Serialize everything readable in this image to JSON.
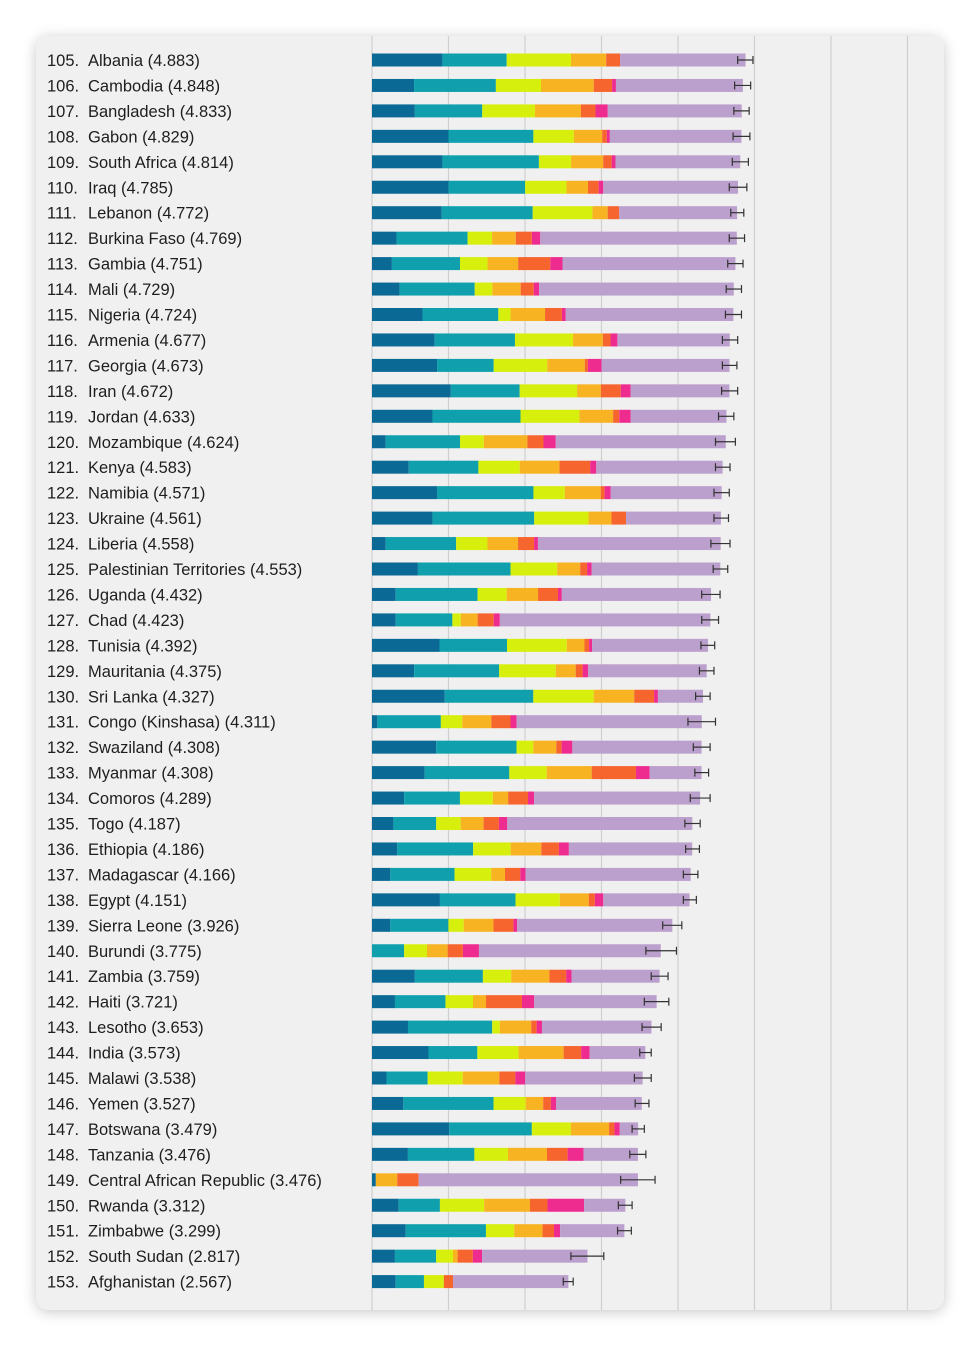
{
  "chart_data": {
    "type": "bar",
    "stacked": true,
    "orientation": "horizontal",
    "title": "",
    "xlabel": "",
    "ylabel": "",
    "xlim": [
      0,
      7.8
    ],
    "grid": true,
    "legend": "none",
    "error_bars": true,
    "segment_colors": [
      "#0b6a95",
      "#10a0ad",
      "#d6ef0c",
      "#f8b322",
      "#f7652f",
      "#ee2b8f",
      "#bb9fcd"
    ],
    "rows": [
      {
        "rank": "105.",
        "country": "Albania (4.883)",
        "score": 4.883,
        "segments": [
          0.92,
          0.84,
          0.84,
          0.46,
          0.18,
          0.0,
          1.64
        ],
        "ci": [
          4.78,
          4.98
        ]
      },
      {
        "rank": "106.",
        "country": "Cambodia (4.848)",
        "segments": [
          0.55,
          1.07,
          0.59,
          0.69,
          0.24,
          0.05,
          1.66
        ],
        "score": 4.848,
        "ci": [
          4.74,
          4.95
        ]
      },
      {
        "rank": "107.",
        "country": "Bangladesh (4.833)",
        "score": 4.833,
        "segments": [
          0.56,
          0.88,
          0.69,
          0.6,
          0.19,
          0.16,
          1.75
        ],
        "ci": [
          4.73,
          4.93
        ]
      },
      {
        "rank": "108.",
        "country": "Gabon (4.829)",
        "score": 4.829,
        "segments": [
          1.0,
          1.11,
          0.53,
          0.37,
          0.06,
          0.04,
          1.72
        ],
        "ci": [
          4.72,
          4.94
        ]
      },
      {
        "rank": "109.",
        "country": "South Africa (4.814)",
        "score": 4.814,
        "segments": [
          0.92,
          1.26,
          0.42,
          0.42,
          0.11,
          0.05,
          1.63
        ],
        "ci": [
          4.71,
          4.92
        ]
      },
      {
        "rank": "110.",
        "country": "Iraq (4.785)",
        "score": 4.785,
        "segments": [
          1.0,
          1.0,
          0.54,
          0.28,
          0.14,
          0.06,
          1.76
        ],
        "ci": [
          4.67,
          4.9
        ]
      },
      {
        "rank": "111.",
        "country": "Lebanon (4.772)",
        "score": 4.772,
        "segments": [
          0.91,
          1.19,
          0.78,
          0.2,
          0.15,
          0.0,
          1.54
        ],
        "ci": [
          4.69,
          4.86
        ]
      },
      {
        "rank": "112.",
        "country": "Burkina Faso (4.769)",
        "score": 4.769,
        "segments": [
          0.32,
          0.93,
          0.32,
          0.31,
          0.21,
          0.11,
          2.57
        ],
        "ci": [
          4.67,
          4.87
        ]
      },
      {
        "rank": "113.",
        "country": "Gambia (4.751)",
        "score": 4.751,
        "segments": [
          0.26,
          0.89,
          0.36,
          0.4,
          0.42,
          0.16,
          2.26
        ],
        "ci": [
          4.65,
          4.85
        ]
      },
      {
        "rank": "114.",
        "country": "Mali (4.729)",
        "score": 4.729,
        "segments": [
          0.36,
          0.98,
          0.23,
          0.37,
          0.17,
          0.07,
          2.54
        ],
        "ci": [
          4.63,
          4.83
        ]
      },
      {
        "rank": "115.",
        "country": "Nigeria (4.724)",
        "score": 4.724,
        "segments": [
          0.66,
          0.99,
          0.16,
          0.45,
          0.22,
          0.05,
          2.19
        ],
        "ci": [
          4.62,
          4.83
        ]
      },
      {
        "rank": "116.",
        "country": "Armenia (4.677)",
        "score": 4.677,
        "segments": [
          0.82,
          1.05,
          0.76,
          0.39,
          0.1,
          0.09,
          1.47
        ],
        "ci": [
          4.58,
          4.78
        ]
      },
      {
        "rank": "117.",
        "country": "Georgia (4.673)",
        "score": 4.673,
        "segments": [
          0.85,
          0.74,
          0.7,
          0.49,
          0.04,
          0.18,
          1.67
        ],
        "ci": [
          4.58,
          4.77
        ]
      },
      {
        "rank": "118.",
        "country": "Iran (4.672)",
        "score": 4.672,
        "segments": [
          1.03,
          0.9,
          0.75,
          0.31,
          0.26,
          0.13,
          1.29
        ],
        "ci": [
          4.57,
          4.78
        ]
      },
      {
        "rank": "119.",
        "country": "Jordan (4.633)",
        "score": 4.633,
        "segments": [
          0.79,
          1.15,
          0.77,
          0.44,
          0.08,
          0.15,
          1.25
        ],
        "ci": [
          4.53,
          4.73
        ]
      },
      {
        "rank": "120.",
        "country": "Mozambique (4.624)",
        "score": 4.624,
        "segments": [
          0.18,
          0.97,
          0.31,
          0.57,
          0.21,
          0.16,
          2.22
        ],
        "ci": [
          4.49,
          4.75
        ]
      },
      {
        "rank": "121.",
        "country": "Kenya (4.583)",
        "score": 4.583,
        "segments": [
          0.48,
          0.91,
          0.54,
          0.52,
          0.4,
          0.08,
          1.65
        ],
        "ci": [
          4.49,
          4.68
        ]
      },
      {
        "rank": "122.",
        "country": "Namibia (4.571)",
        "score": 4.571,
        "segments": [
          0.85,
          1.26,
          0.41,
          0.47,
          0.05,
          0.08,
          1.45
        ],
        "ci": [
          4.47,
          4.67
        ]
      },
      {
        "rank": "123.",
        "country": "Ukraine (4.561)",
        "score": 4.561,
        "segments": [
          0.79,
          1.33,
          0.71,
          0.3,
          0.19,
          0.0,
          1.24
        ],
        "ci": [
          4.47,
          4.66
        ]
      },
      {
        "rank": "124.",
        "country": "Liberia (4.558)",
        "score": 4.558,
        "segments": [
          0.18,
          0.92,
          0.41,
          0.4,
          0.21,
          0.05,
          2.39
        ],
        "ci": [
          4.43,
          4.68
        ]
      },
      {
        "rank": "125.",
        "country": "Palestinian Territories (4.553)",
        "score": 4.553,
        "segments": [
          0.6,
          1.21,
          0.61,
          0.3,
          0.09,
          0.06,
          1.68
        ],
        "ci": [
          4.46,
          4.65
        ]
      },
      {
        "rank": "126.",
        "country": "Uganda (4.432)",
        "score": 4.432,
        "segments": [
          0.31,
          1.07,
          0.38,
          0.41,
          0.26,
          0.05,
          1.95
        ],
        "ci": [
          4.31,
          4.55
        ]
      },
      {
        "rank": "127.",
        "country": "Chad (4.423)",
        "score": 4.423,
        "segments": [
          0.31,
          0.74,
          0.11,
          0.22,
          0.21,
          0.08,
          2.75
        ],
        "ci": [
          4.31,
          4.53
        ]
      },
      {
        "rank": "128.",
        "country": "Tunisia (4.392)",
        "score": 4.392,
        "segments": [
          0.88,
          0.88,
          0.78,
          0.23,
          0.06,
          0.04,
          1.51
        ],
        "ci": [
          4.3,
          4.48
        ]
      },
      {
        "rank": "129.",
        "country": "Mauritania (4.375)",
        "score": 4.375,
        "segments": [
          0.55,
          1.11,
          0.74,
          0.26,
          0.09,
          0.07,
          1.55
        ],
        "ci": [
          4.28,
          4.47
        ]
      },
      {
        "rank": "130.",
        "country": "Sri Lanka (4.327)",
        "score": 4.327,
        "segments": [
          0.95,
          1.16,
          0.79,
          0.53,
          0.26,
          0.05,
          0.59
        ],
        "ci": [
          4.23,
          4.42
        ]
      },
      {
        "rank": "131.",
        "country": "Congo (Kinshasa) (4.311)",
        "score": 4.311,
        "segments": [
          0.07,
          0.83,
          0.28,
          0.38,
          0.25,
          0.08,
          2.42
        ],
        "ci": [
          4.13,
          4.49
        ]
      },
      {
        "rank": "132.",
        "country": "Swaziland (4.308)",
        "score": 4.308,
        "segments": [
          0.84,
          1.05,
          0.22,
          0.3,
          0.07,
          0.14,
          1.69
        ],
        "ci": [
          4.2,
          4.42
        ]
      },
      {
        "rank": "133.",
        "country": "Myanmar (4.308)",
        "score": 4.308,
        "segments": [
          0.69,
          1.11,
          0.49,
          0.59,
          0.58,
          0.18,
          0.68
        ],
        "ci": [
          4.22,
          4.4
        ]
      },
      {
        "rank": "134.",
        "country": "Comoros (4.289)",
        "score": 4.289,
        "segments": [
          0.42,
          0.73,
          0.43,
          0.2,
          0.26,
          0.08,
          2.17
        ],
        "ci": [
          4.16,
          4.42
        ]
      },
      {
        "rank": "135.",
        "country": "Togo (4.187)",
        "score": 4.187,
        "segments": [
          0.28,
          0.56,
          0.32,
          0.3,
          0.2,
          0.11,
          2.42
        ],
        "ci": [
          4.09,
          4.29
        ]
      },
      {
        "rank": "136.",
        "country": "Ethiopia (4.186)",
        "score": 4.186,
        "segments": [
          0.33,
          0.99,
          0.49,
          0.4,
          0.23,
          0.13,
          1.61
        ],
        "ci": [
          4.1,
          4.28
        ]
      },
      {
        "rank": "137.",
        "country": "Madagascar (4.166)",
        "score": 4.166,
        "segments": [
          0.24,
          0.84,
          0.48,
          0.18,
          0.2,
          0.07,
          2.16
        ],
        "ci": [
          4.07,
          4.26
        ]
      },
      {
        "rank": "138.",
        "country": "Egypt (4.151)",
        "score": 4.151,
        "segments": [
          0.89,
          0.99,
          0.58,
          0.38,
          0.08,
          0.11,
          1.13
        ],
        "ci": [
          4.07,
          4.24
        ]
      },
      {
        "rank": "139.",
        "country": "Sierra Leone (3.926)",
        "score": 3.926,
        "segments": [
          0.24,
          0.76,
          0.2,
          0.39,
          0.26,
          0.05,
          2.03
        ],
        "ci": [
          3.8,
          4.05
        ]
      },
      {
        "rank": "140.",
        "country": "Burundi (3.775)",
        "score": 3.775,
        "segments": [
          0.0,
          0.42,
          0.3,
          0.27,
          0.2,
          0.21,
          2.38
        ],
        "ci": [
          3.58,
          3.98
        ]
      },
      {
        "rank": "141.",
        "country": "Zambia (3.759)",
        "score": 3.759,
        "segments": [
          0.56,
          0.89,
          0.37,
          0.5,
          0.22,
          0.07,
          1.15
        ],
        "ci": [
          3.65,
          3.87
        ]
      },
      {
        "rank": "142.",
        "country": "Haiti (3.721)",
        "score": 3.721,
        "segments": [
          0.3,
          0.66,
          0.36,
          0.17,
          0.47,
          0.16,
          1.6
        ],
        "ci": [
          3.56,
          3.88
        ]
      },
      {
        "rank": "143.",
        "country": "Lesotho (3.653)",
        "score": 3.653,
        "segments": [
          0.47,
          1.1,
          0.1,
          0.41,
          0.07,
          0.07,
          1.43
        ],
        "ci": [
          3.53,
          3.78
        ]
      },
      {
        "rank": "144.",
        "country": "India (3.573)",
        "score": 3.573,
        "segments": [
          0.74,
          0.64,
          0.54,
          0.59,
          0.23,
          0.11,
          0.73
        ],
        "ci": [
          3.5,
          3.65
        ]
      },
      {
        "rank": "145.",
        "country": "Malawi (3.538)",
        "score": 3.538,
        "segments": [
          0.19,
          0.54,
          0.46,
          0.48,
          0.21,
          0.13,
          1.54
        ],
        "ci": [
          3.43,
          3.65
        ]
      },
      {
        "rank": "146.",
        "country": "Yemen (3.527)",
        "score": 3.527,
        "segments": [
          0.41,
          1.18,
          0.42,
          0.23,
          0.1,
          0.07,
          1.12
        ],
        "ci": [
          3.44,
          3.62
        ]
      },
      {
        "rank": "147.",
        "country": "Botswana (3.479)",
        "score": 3.479,
        "segments": [
          1.01,
          1.08,
          0.51,
          0.5,
          0.07,
          0.07,
          0.24
        ],
        "ci": [
          3.4,
          3.56
        ]
      },
      {
        "rank": "148.",
        "country": "Tanzania (3.476)",
        "score": 3.476,
        "segments": [
          0.47,
          0.87,
          0.44,
          0.51,
          0.27,
          0.21,
          0.71
        ],
        "ci": [
          3.37,
          3.58
        ]
      },
      {
        "rank": "149.",
        "country": "Central African Republic (3.476)",
        "score": 3.476,
        "segments": [
          0.05,
          0.0,
          0.0,
          0.28,
          0.28,
          0.0,
          2.87
        ],
        "ci": [
          3.25,
          3.7
        ]
      },
      {
        "rank": "150.",
        "country": "Rwanda (3.312)",
        "score": 3.312,
        "segments": [
          0.35,
          0.54,
          0.58,
          0.6,
          0.23,
          0.48,
          0.54
        ],
        "ci": [
          3.22,
          3.4
        ]
      },
      {
        "rank": "151.",
        "country": "Zimbabwe (3.299)",
        "score": 3.299,
        "segments": [
          0.44,
          1.05,
          0.37,
          0.37,
          0.15,
          0.08,
          0.84
        ],
        "ci": [
          3.21,
          3.39
        ]
      },
      {
        "rank": "152.",
        "country": "South Sudan (2.817)",
        "score": 2.817,
        "segments": [
          0.3,
          0.54,
          0.22,
          0.06,
          0.2,
          0.12,
          1.38
        ],
        "ci": [
          2.6,
          3.03
        ]
      },
      {
        "rank": "153.",
        "country": "Afghanistan (2.567)",
        "score": 2.567,
        "segments": [
          0.31,
          0.37,
          0.26,
          0.0,
          0.12,
          0.0,
          1.51
        ],
        "ci": [
          2.5,
          2.63
        ]
      }
    ]
  }
}
